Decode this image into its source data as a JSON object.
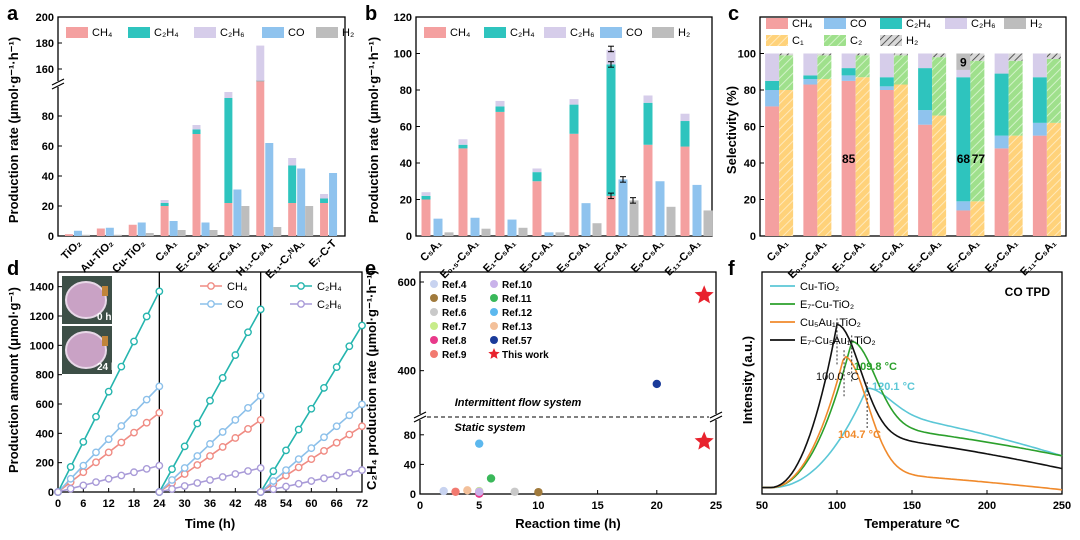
{
  "colors": {
    "CH4": "#f4a0a0",
    "C2H4": "#2ec4be",
    "C2H6": "#d6cdea",
    "CO": "#8fc3ee",
    "H2": "#bdbdbd",
    "C1": "#ffd27a",
    "C2": "#9fe08c",
    "C2H2": "#6b6b6b",
    "cu": "#5bc7d6",
    "e7cu": "#2ca02c",
    "cuau": "#f08a2c",
    "e7cuau": "#111111"
  },
  "chart_data": [
    {
      "panel": "a",
      "type": "bar",
      "ylabel": "Production rate (μmol·g⁻¹·h⁻¹)",
      "categories": [
        "TiO₂",
        "Au-TiO₂",
        "Cu-TiO₂",
        "C₅A₁",
        "E₁-C₅A₁",
        "E₇-C₅A₁",
        "H₁₁-C₅A₁",
        "E₁₁-C₇ᴺA₁",
        "E₇-C-T"
      ],
      "stack_series": [
        {
          "name": "CH₄",
          "values": [
            1.2,
            5,
            7.5,
            20,
            68,
            22,
            143,
            22,
            22
          ]
        },
        {
          "name": "C₂H₄",
          "values": [
            0,
            0,
            0,
            2,
            3,
            70,
            8,
            25,
            3
          ]
        },
        {
          "name": "C₂H₆",
          "values": [
            0,
            0,
            0,
            2,
            3,
            4,
            27,
            5,
            3
          ]
        }
      ],
      "bar_series": [
        {
          "name": "CO",
          "values": [
            3.5,
            5.5,
            9,
            10,
            9,
            31,
            62,
            45,
            42
          ]
        },
        {
          "name": "H₂",
          "values": [
            0.8,
            0.8,
            2,
            4,
            4,
            20,
            6,
            20,
            0
          ]
        }
      ],
      "legend": [
        "CH₄",
        "C₂H₄",
        "C₂H₆",
        "CO",
        "H₂"
      ],
      "y_lower_ticks": [
        "0",
        "20",
        "40",
        "60",
        "80"
      ],
      "y_upper_ticks": [
        "160",
        "180",
        "200"
      ],
      "ylim_lower": [
        0,
        100
      ],
      "ylim_upper": [
        150,
        200
      ]
    },
    {
      "panel": "b",
      "type": "bar",
      "ylabel": "Production rate (μmol·g⁻¹·h⁻¹)",
      "categories": [
        "C₅A₁",
        "E₀.₅-C₅A₁",
        "E₁-C₅A₁",
        "E₃-C₅A₁",
        "E₅-C₅A₁",
        "E₇-C₅A₁",
        "E₉-C₅A₁",
        "E₁₁-C₅A₁"
      ],
      "stack_series": [
        {
          "name": "CH₄",
          "values": [
            20,
            48,
            68,
            30,
            56,
            22,
            50,
            49
          ]
        },
        {
          "name": "C₂H₄",
          "values": [
            2,
            2,
            3,
            5,
            16,
            72,
            23,
            14
          ]
        },
        {
          "name": "C₂H₆",
          "values": [
            2,
            3,
            3,
            2,
            3,
            8,
            4,
            4
          ]
        }
      ],
      "bar_series": [
        {
          "name": "CO",
          "values": [
            9.5,
            10,
            9,
            2,
            18,
            31,
            30,
            28
          ]
        },
        {
          "name": "H₂",
          "values": [
            2,
            4,
            4.5,
            2,
            7,
            19.5,
            16,
            14
          ]
        }
      ],
      "legend": [
        "CH₄",
        "C₂H₄",
        "C₂H₆",
        "CO",
        "H₂"
      ],
      "y_ticks": [
        "0",
        "20",
        "40",
        "60",
        "80",
        "100",
        "120"
      ],
      "ylim": [
        0,
        120
      ]
    },
    {
      "panel": "c",
      "type": "bar",
      "ylabel": "Selectivity (%)",
      "categories": [
        "C₅A₁",
        "E₀.₅-C₅A₁",
        "E₁-C₅A₁",
        "E₃-C₅A₁",
        "E₅-C₅A₁",
        "E₇-C₅A₁",
        "E₉-C₅A₁",
        "E₁₁-C₅A₁"
      ],
      "product_stack": [
        {
          "name": "CH₄",
          "values": [
            71,
            83,
            85,
            80,
            61,
            14,
            48,
            55
          ]
        },
        {
          "name": "CO",
          "values": [
            9,
            3,
            3,
            2,
            8,
            5,
            7,
            7
          ]
        },
        {
          "name": "C₂H₄",
          "values": [
            5,
            2,
            4,
            5,
            23,
            68,
            34,
            25
          ]
        },
        {
          "name": "C₂H₆",
          "values": [
            15,
            12,
            8,
            13,
            8,
            4,
            11,
            13
          ]
        },
        {
          "name": "H₂",
          "values": [
            0,
            0,
            0,
            0,
            0,
            9,
            0,
            0
          ]
        }
      ],
      "carbon_stack": [
        {
          "name": "C₁",
          "values": [
            80,
            86,
            87,
            83,
            66,
            19,
            55,
            62
          ]
        },
        {
          "name": "C₂",
          "values": [
            19,
            13,
            12,
            16,
            32,
            77,
            41,
            35
          ]
        },
        {
          "name": "H₂",
          "values": [
            1,
            1,
            1,
            1,
            2,
            4,
            4,
            3
          ]
        }
      ],
      "annotations": [
        "85",
        "68",
        "77",
        "9"
      ],
      "legend": [
        "CH₄",
        "CO",
        "C₂H₄",
        "C₂H₆",
        "H₂",
        "C₁",
        "C₂",
        "H₂"
      ],
      "y_ticks": [
        "0",
        "20",
        "40",
        "60",
        "80",
        "100"
      ],
      "ylim": [
        0,
        120
      ]
    },
    {
      "panel": "d",
      "type": "line",
      "xlabel": "Time (h)",
      "ylabel": "Production amount (μmol·g⁻¹)",
      "x_ticks": [
        "0",
        "6",
        "12",
        "18",
        "24",
        "30",
        "36",
        "42",
        "48",
        "54",
        "60",
        "66",
        "72"
      ],
      "y_ticks": [
        "0",
        "200",
        "400",
        "600",
        "800",
        "1000",
        "1200",
        "1400"
      ],
      "xlim": [
        0,
        72
      ],
      "ylim": [
        0,
        1500
      ],
      "cycles": [
        [
          0,
          24
        ],
        [
          24,
          48
        ],
        [
          48,
          72
        ]
      ],
      "series": [
        {
          "name": "CH₄",
          "rate": 22.5
        },
        {
          "name": "CO",
          "rate": 30
        },
        {
          "name": "C₂H₄",
          "rate": 57
        },
        {
          "name": "C₂H₆",
          "rate": 7.5
        }
      ],
      "rate_factors": [
        1.0,
        0.91,
        0.83
      ],
      "photo_labels": [
        "0 h",
        "24 h"
      ]
    },
    {
      "panel": "e",
      "type": "scatter",
      "xlabel": "Reaction time (h)",
      "ylabel": "C₂H₄ production rate (μmol·g⁻¹·h⁻¹)",
      "x_ticks": [
        "0",
        "5",
        "10",
        "15",
        "20",
        "25"
      ],
      "y_lower_ticks": [
        "0",
        "40",
        "80"
      ],
      "y_upper_ticks": [
        "400",
        "600"
      ],
      "xlim": [
        0,
        25
      ],
      "points": [
        {
          "name": "Ref.4",
          "x": 2,
          "y": 4
        },
        {
          "name": "Ref.5",
          "x": 10,
          "y": 2.5
        },
        {
          "name": "Ref.6",
          "x": 8,
          "y": 3
        },
        {
          "name": "Ref.7",
          "x": 5,
          "y": 4
        },
        {
          "name": "Ref.8",
          "x": 5,
          "y": 0.5
        },
        {
          "name": "Ref.9",
          "x": 3,
          "y": 3
        },
        {
          "name": "Ref.10",
          "x": 5,
          "y": 3
        },
        {
          "name": "Ref.11",
          "x": 6,
          "y": 21
        },
        {
          "name": "Ref.12",
          "x": 5,
          "y": 68
        },
        {
          "name": "Ref.13",
          "x": 4,
          "y": 5
        },
        {
          "name": "Ref.57",
          "x": 20,
          "y": 370
        },
        {
          "name": "This work",
          "x": 24,
          "y": 570
        },
        {
          "name": "This work",
          "x": 24,
          "y": 71
        }
      ],
      "text": [
        "Intermittent flow system",
        "Static system"
      ]
    },
    {
      "panel": "f",
      "type": "line",
      "xlabel": "Temperature ºC",
      "ylabel": "Intensity (a.u.)",
      "x_ticks": [
        "50",
        "100",
        "150",
        "200",
        "250"
      ],
      "xlim": [
        50,
        250
      ],
      "title": "CO  TPD",
      "series": [
        {
          "name": "Cu-TiO₂",
          "peak": 120.1
        },
        {
          "name": "E₇-Cu-TiO₂",
          "peak": 109.8
        },
        {
          "name": "Cu₅Au₁-TiO₂",
          "peak": 104.7
        },
        {
          "name": "E₇-Cu₅Au₁-TiO₂",
          "peak": 100.0
        }
      ],
      "peak_labels": [
        "100.0 °C",
        "109.8 °C",
        "120.1 °C",
        "104.7 °C"
      ]
    }
  ]
}
